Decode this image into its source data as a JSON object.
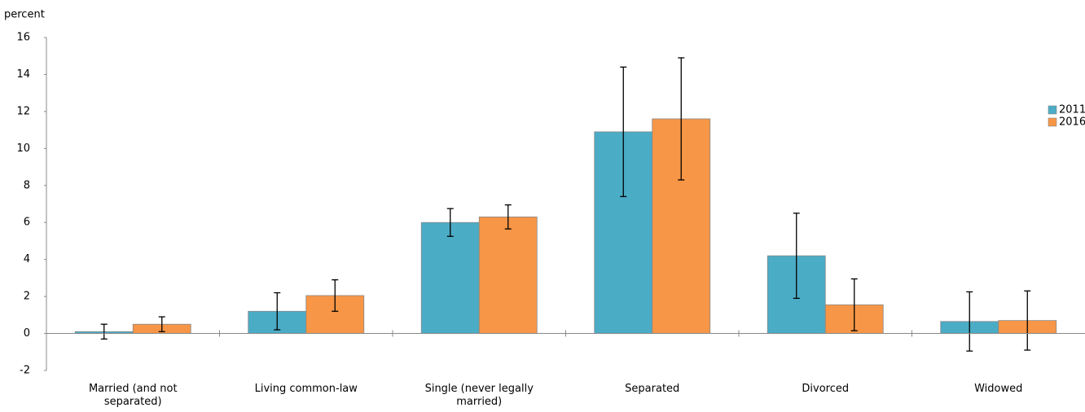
{
  "chart_data": {
    "type": "bar",
    "y_axis_label": "percent",
    "categories": [
      "Married (and not separated)",
      "Living common-law",
      "Single (never legally married)",
      "Separated",
      "Divorced",
      "Widowed"
    ],
    "series": [
      {
        "name": "2011",
        "color": "#4bacc6",
        "values": [
          0.1,
          1.2,
          6.0,
          10.9,
          4.2,
          0.65
        ],
        "errors": [
          0.4,
          1.0,
          0.75,
          3.5,
          2.3,
          1.6
        ]
      },
      {
        "name": "2016",
        "color": "#f79646",
        "values": [
          0.5,
          2.05,
          6.3,
          11.6,
          1.55,
          0.7
        ],
        "errors": [
          0.4,
          0.85,
          0.65,
          3.3,
          1.4,
          1.6
        ]
      }
    ],
    "ylim": [
      -2,
      16
    ],
    "yticks": [
      -2,
      0,
      2,
      4,
      6,
      8,
      10,
      12,
      14,
      16
    ],
    "grid": false,
    "legend": "right"
  }
}
